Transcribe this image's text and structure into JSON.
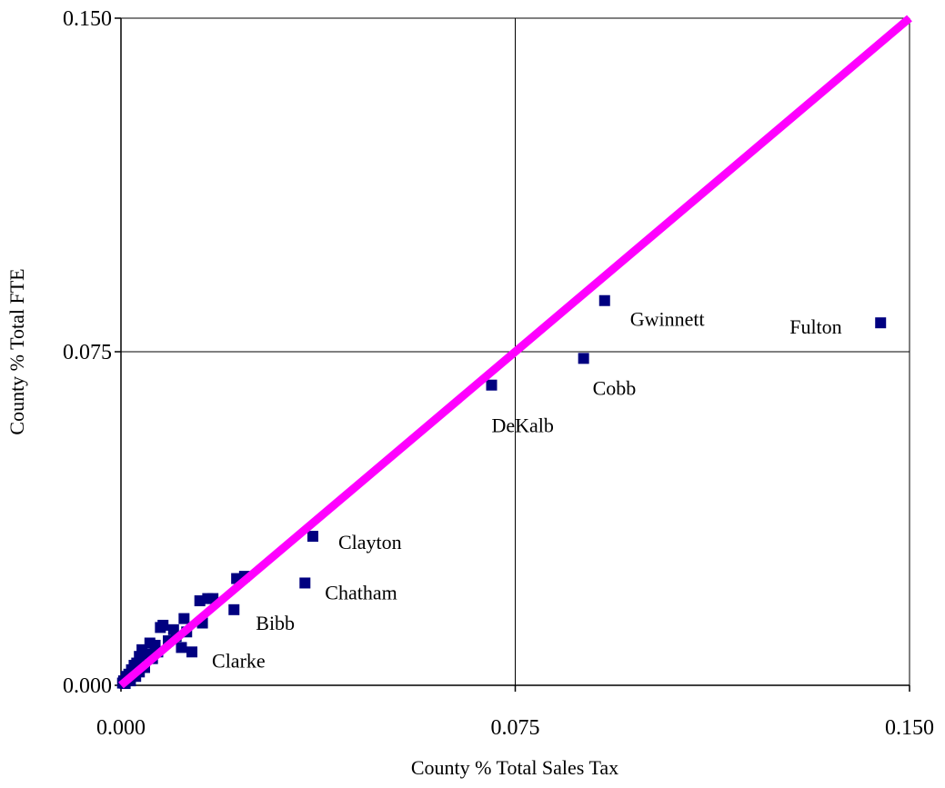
{
  "chart_data": {
    "type": "scatter",
    "title": "",
    "xlabel": "County % Total Sales Tax",
    "ylabel": "County % Total FTE",
    "xlim": [
      0,
      0.15
    ],
    "ylim": [
      0,
      0.15
    ],
    "xticks": [
      "0.000",
      "0.075",
      "0.150"
    ],
    "yticks": [
      "0.000",
      "0.075",
      "0.150"
    ],
    "grid": true,
    "marker_color": "#000080",
    "line_color": "#ff00ff",
    "reference_line": {
      "from": [
        0,
        0
      ],
      "to": [
        0.15,
        0.15
      ]
    },
    "labeled_points": [
      {
        "label": "Fulton",
        "x": 0.1445,
        "y": 0.0815
      },
      {
        "label": "Gwinnett",
        "x": 0.092,
        "y": 0.0865
      },
      {
        "label": "Cobb",
        "x": 0.088,
        "y": 0.0735
      },
      {
        "label": "DeKalb",
        "x": 0.0705,
        "y": 0.0675
      },
      {
        "label": "Clayton",
        "x": 0.0365,
        "y": 0.0335
      },
      {
        "label": "Chatham",
        "x": 0.035,
        "y": 0.023
      },
      {
        "label": "Bibb",
        "x": 0.0215,
        "y": 0.017
      },
      {
        "label": "Clarke",
        "x": 0.0135,
        "y": 0.0075
      }
    ],
    "other_points": [
      {
        "x": 0.0235,
        "y": 0.0245
      },
      {
        "x": 0.022,
        "y": 0.024
      },
      {
        "x": 0.0175,
        "y": 0.0195
      },
      {
        "x": 0.015,
        "y": 0.019
      },
      {
        "x": 0.0165,
        "y": 0.0195
      },
      {
        "x": 0.0155,
        "y": 0.014
      },
      {
        "x": 0.012,
        "y": 0.015
      },
      {
        "x": 0.0125,
        "y": 0.012
      },
      {
        "x": 0.01,
        "y": 0.0125
      },
      {
        "x": 0.008,
        "y": 0.0135
      },
      {
        "x": 0.0075,
        "y": 0.013
      },
      {
        "x": 0.0115,
        "y": 0.0085
      },
      {
        "x": 0.009,
        "y": 0.01
      },
      {
        "x": 0.0065,
        "y": 0.009
      },
      {
        "x": 0.0055,
        "y": 0.0095
      },
      {
        "x": 0.006,
        "y": 0.006
      },
      {
        "x": 0.005,
        "y": 0.007
      },
      {
        "x": 0.004,
        "y": 0.008
      },
      {
        "x": 0.0035,
        "y": 0.0065
      },
      {
        "x": 0.003,
        "y": 0.005
      },
      {
        "x": 0.0025,
        "y": 0.0045
      },
      {
        "x": 0.0035,
        "y": 0.003
      },
      {
        "x": 0.002,
        "y": 0.0035
      },
      {
        "x": 0.0015,
        "y": 0.0025
      },
      {
        "x": 0.001,
        "y": 0.002
      },
      {
        "x": 0.0012,
        "y": 0.0012
      },
      {
        "x": 0.0005,
        "y": 0.001
      },
      {
        "x": 0.0008,
        "y": 0.0004
      },
      {
        "x": 0.0003,
        "y": 0.0005
      },
      {
        "x": 0.0045,
        "y": 0.004
      },
      {
        "x": 0.007,
        "y": 0.0075
      },
      {
        "x": 0.0105,
        "y": 0.011
      },
      {
        "x": 0.0028,
        "y": 0.002
      },
      {
        "x": 0.0018,
        "y": 0.001
      }
    ]
  }
}
